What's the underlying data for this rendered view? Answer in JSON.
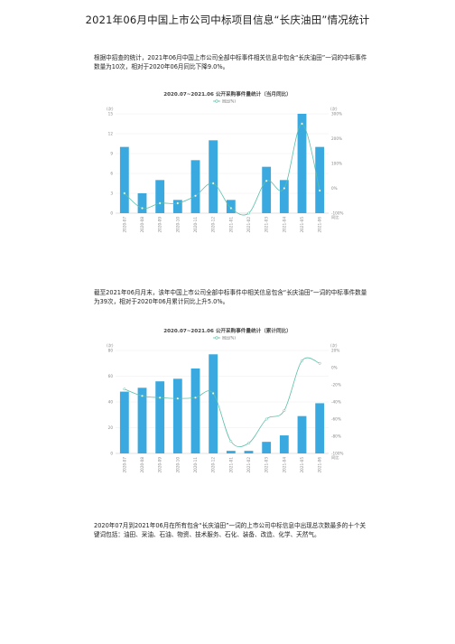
{
  "doc": {
    "title": "2021年06月中国上市公司中标项目信息“长庆油田”情况统计",
    "para1": "根据中招查的统计，2021年06月中国上市公司全部中标事件相关信息中包含“长庆油田”一词的中标事件数量为10次，相对于2020年06月同比下降9.0%。",
    "para2": "截至2021年06月月末，该年中国上市公司全部中标事件中相关信息包含“长庆油田”一词的中标事件数量为39次，相对于2020年06月累计同比上升5.0%。",
    "para3": "2020年07月到2021年06月在所有包含“长庆油田”一词的上市公司中标信息中出现总次数最多的十个关键词包括：油田、采油、石油、物资、技术服务、石化、装备、改造、化学、天然气。"
  },
  "chart_data": [
    {
      "type": "bar",
      "title": "2020.07~2021.06 公开采购事件量统计（当月同比）",
      "legend": "同比(%)",
      "yleft_unit": "(次)",
      "yright_unit": "(次)",
      "categories": [
        "2020-07",
        "2020-08",
        "2020-09",
        "2020-10",
        "2020-11",
        "2020-12",
        "2021-01",
        "2021-02",
        "2021-03",
        "2021-04",
        "2021-05",
        "2021-06"
      ],
      "values": [
        10,
        3,
        5,
        2,
        8,
        11,
        2,
        0,
        7,
        5,
        15,
        10
      ],
      "line": [
        -20,
        -80,
        -60,
        -60,
        -30,
        20,
        -80,
        -100,
        30,
        0,
        260,
        -9
      ],
      "ylim": [
        0,
        15
      ],
      "yticks": [
        "0",
        "3",
        "6",
        "9",
        "12",
        "15"
      ],
      "y2lim": [
        -100,
        300
      ],
      "y2ticks": [
        "-100%",
        "0%",
        "100%",
        "200%",
        "300%"
      ],
      "bottom_right_label": "同比",
      "colors": {
        "bar": "#3aa9df",
        "line": "#5bbfa9"
      }
    },
    {
      "type": "bar",
      "title": "2020.07~2021.06 公开采购事件量统计（累计同比）",
      "legend": "同比(%)",
      "yleft_unit": "(次)",
      "yright_unit": "(次)",
      "categories": [
        "2020-07",
        "2020-08",
        "2020-09",
        "2020-10",
        "2020-11",
        "2020-12",
        "2021-01",
        "2021-02",
        "2021-03",
        "2021-04",
        "2021-05",
        "2021-06"
      ],
      "values": [
        48,
        51,
        56,
        58,
        66,
        77,
        2,
        2,
        9,
        14,
        29,
        39
      ],
      "line": [
        -25,
        -33,
        -35,
        -36,
        -35,
        -30,
        -86,
        -88,
        -60,
        -50,
        8,
        5
      ],
      "ylim": [
        0,
        80
      ],
      "yticks": [
        "0",
        "20",
        "40",
        "60",
        "80"
      ],
      "y2lim": [
        -100,
        20
      ],
      "y2ticks": [
        "-100%",
        "-80%",
        "-60%",
        "-40%",
        "-20%",
        "0%",
        "20%"
      ],
      "bottom_right_label": "同比",
      "colors": {
        "bar": "#3aa9df",
        "line": "#5bbfa9"
      }
    }
  ]
}
